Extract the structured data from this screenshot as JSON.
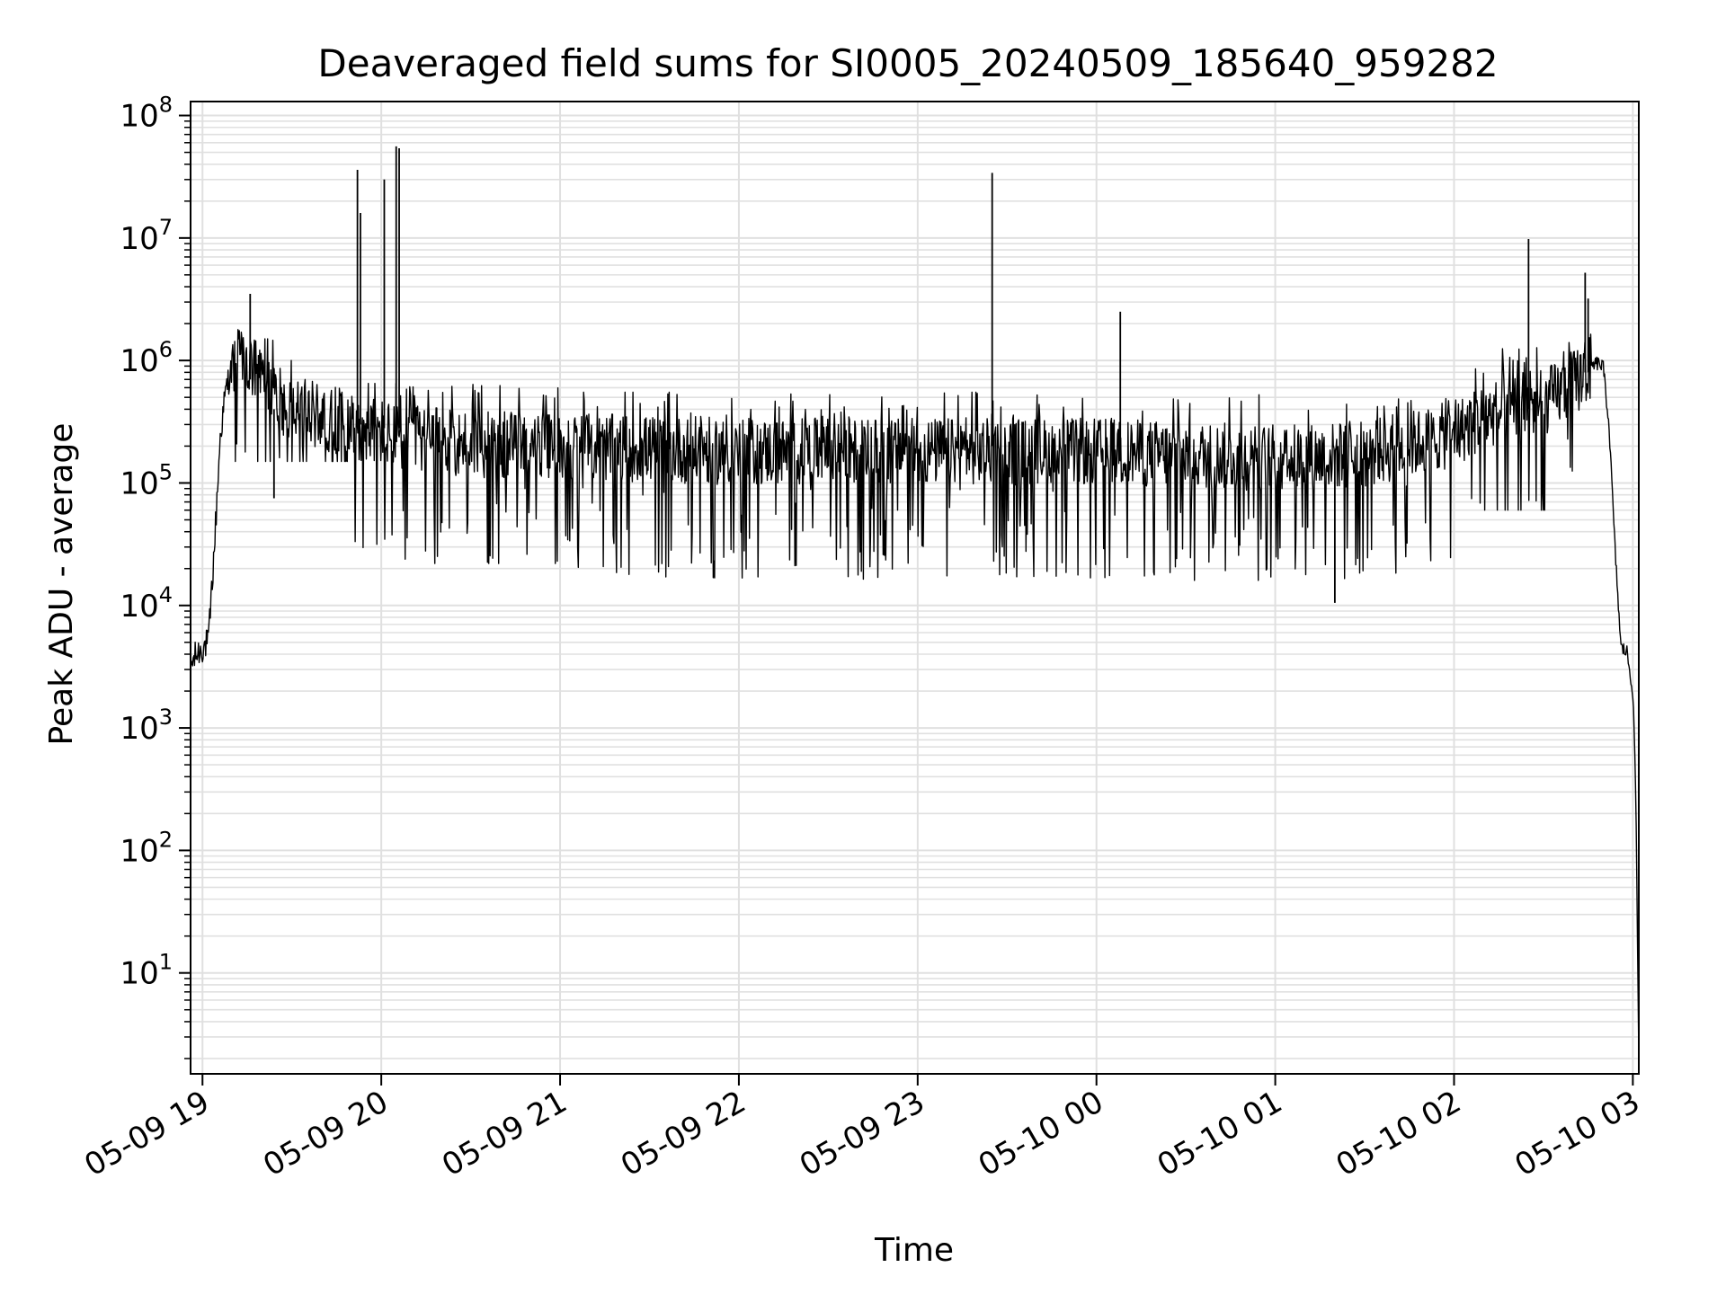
{
  "chart_data": {
    "type": "line",
    "title": "Deaveraged field sums for SI0005_20240509_185640_959282",
    "xlabel": "Time",
    "ylabel": "Peak ADU - average",
    "y_scale": "log",
    "ylim": [
      1.5,
      130000000
    ],
    "xlim": [
      "2024-05-09 18:56",
      "2024-05-10 03:02"
    ],
    "grid": true,
    "line_color": "#000000",
    "grid_color": "#e0e0e0",
    "x_ticks": [
      {
        "label": "05-09 19",
        "t": "2024-05-09 19:00"
      },
      {
        "label": "05-09 20",
        "t": "2024-05-09 20:00"
      },
      {
        "label": "05-09 21",
        "t": "2024-05-09 21:00"
      },
      {
        "label": "05-09 22",
        "t": "2024-05-09 22:00"
      },
      {
        "label": "05-09 23",
        "t": "2024-05-09 23:00"
      },
      {
        "label": "05-10 00",
        "t": "2024-05-10 00:00"
      },
      {
        "label": "05-10 01",
        "t": "2024-05-10 01:00"
      },
      {
        "label": "05-10 02",
        "t": "2024-05-10 02:00"
      },
      {
        "label": "05-10 03",
        "t": "2024-05-10 03:00"
      }
    ],
    "y_ticks": [
      {
        "base": "10",
        "exp": "1",
        "value": 10
      },
      {
        "base": "10",
        "exp": "2",
        "value": 100
      },
      {
        "base": "10",
        "exp": "3",
        "value": 1000
      },
      {
        "base": "10",
        "exp": "4",
        "value": 10000
      },
      {
        "base": "10",
        "exp": "5",
        "value": 100000
      },
      {
        "base": "10",
        "exp": "6",
        "value": 1000000
      },
      {
        "base": "10",
        "exp": "7",
        "value": 10000000
      },
      {
        "base": "10",
        "exp": "8",
        "value": 100000000
      }
    ],
    "series": [
      {
        "x": [
          "2024-05-09 18:56",
          "2024-05-09 18:58",
          "2024-05-09 19:00",
          "2024-05-09 19:02",
          "2024-05-09 19:04",
          "2024-05-09 19:06",
          "2024-05-09 19:08",
          "2024-05-09 19:10",
          "2024-05-09 19:12",
          "2024-05-09 19:15",
          "2024-05-09 19:20",
          "2024-05-09 19:25",
          "2024-05-09 19:30",
          "2024-05-09 19:40",
          "2024-05-09 19:50",
          "2024-05-09 19:55",
          "2024-05-09 20:00",
          "2024-05-09 20:05",
          "2024-05-09 20:10",
          "2024-05-09 20:20",
          "2024-05-09 20:30",
          "2024-05-09 20:45",
          "2024-05-09 21:00",
          "2024-05-09 21:30",
          "2024-05-09 22:00",
          "2024-05-09 22:30",
          "2024-05-09 23:00",
          "2024-05-09 23:30",
          "2024-05-10 00:00",
          "2024-05-10 00:30",
          "2024-05-10 01:00",
          "2024-05-10 01:30",
          "2024-05-10 02:00",
          "2024-05-10 02:10",
          "2024-05-10 02:20",
          "2024-05-10 02:30",
          "2024-05-10 02:40",
          "2024-05-10 02:45",
          "2024-05-10 02:48",
          "2024-05-10 02:50",
          "2024-05-10 02:52",
          "2024-05-10 02:54",
          "2024-05-10 02:56",
          "2024-05-10 02:58",
          "2024-05-10 03:00",
          "2024-05-10 03:01",
          "2024-05-10 03:02"
        ],
        "y": [
          3200,
          4000,
          4500,
          5000,
          30000,
          250000,
          600000,
          900000,
          1000000,
          900000,
          700000,
          500000,
          400000,
          350000,
          300000,
          280000,
          260000,
          240000,
          230000,
          220000,
          210000,
          200000,
          200000,
          190000,
          180000,
          180000,
          180000,
          180000,
          180000,
          170000,
          160000,
          170000,
          250000,
          350000,
          400000,
          450000,
          650000,
          850000,
          950000,
          900000,
          300000,
          30000,
          4500,
          4200,
          2000,
          300,
          2
        ]
      }
    ],
    "spikes": [
      {
        "t": "2024-05-09 19:16",
        "peak": 3500000,
        "floor": 700000
      },
      {
        "t": "2024-05-09 19:24",
        "peak": 75000,
        "floor": 400000
      },
      {
        "t": "2024-05-09 19:52",
        "peak": 36000000,
        "floor": 300000
      },
      {
        "t": "2024-05-09 19:53",
        "peak": 16000000,
        "floor": 300000
      },
      {
        "t": "2024-05-09 20:01",
        "peak": 30000000,
        "floor": 280000
      },
      {
        "t": "2024-05-09 20:05",
        "peak": 56000000,
        "floor": 280000
      },
      {
        "t": "2024-05-09 20:06",
        "peak": 54000000,
        "floor": 280000
      },
      {
        "t": "2024-05-09 23:25",
        "peak": 34000000,
        "floor": 200000
      },
      {
        "t": "2024-05-10 00:08",
        "peak": 2500000,
        "floor": 200000
      },
      {
        "t": "2024-05-10 01:20",
        "peak": 10500,
        "floor": 180000
      },
      {
        "t": "2024-05-10 02:25",
        "peak": 9800000,
        "floor": 400000
      },
      {
        "t": "2024-05-10 02:44",
        "peak": 5200000,
        "floor": 800000
      },
      {
        "t": "2024-05-10 02:45",
        "peak": 3200000,
        "floor": 800000
      }
    ],
    "noise": {
      "segments": [
        {
          "from": "2024-05-09 19:10",
          "to": "2024-05-09 19:50",
          "hi": 1500000,
          "lo": 150000
        },
        {
          "from": "2024-05-09 19:50",
          "to": "2024-05-09 21:00",
          "hi": 650000,
          "lo": 22000
        },
        {
          "from": "2024-05-09 21:00",
          "to": "2024-05-10 02:00",
          "hi": 550000,
          "lo": 16000
        },
        {
          "from": "2024-05-10 02:00",
          "to": "2024-05-10 02:46",
          "hi": 1400000,
          "lo": 60000
        }
      ]
    }
  }
}
